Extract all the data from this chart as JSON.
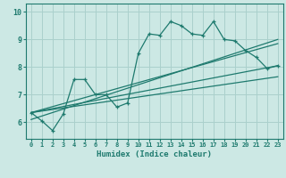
{
  "xlabel": "Humidex (Indice chaleur)",
  "ylabel": "",
  "xlim": [
    -0.5,
    23.5
  ],
  "ylim": [
    5.4,
    10.3
  ],
  "xticks": [
    0,
    1,
    2,
    3,
    4,
    5,
    6,
    7,
    8,
    9,
    10,
    11,
    12,
    13,
    14,
    15,
    16,
    17,
    18,
    19,
    20,
    21,
    22,
    23
  ],
  "yticks": [
    6,
    7,
    8,
    9,
    10
  ],
  "background_color": "#cce8e4",
  "grid_color": "#aad0cc",
  "line_color": "#1e7a6e",
  "line1_x": [
    0,
    1,
    2,
    3,
    4,
    5,
    6,
    7,
    8,
    9,
    10,
    11,
    12,
    13,
    14,
    15,
    16,
    17,
    18,
    19,
    20,
    21,
    22,
    23
  ],
  "line1_y": [
    6.35,
    6.05,
    5.7,
    6.3,
    7.55,
    7.55,
    7.0,
    7.0,
    6.55,
    6.7,
    8.5,
    9.2,
    9.15,
    9.65,
    9.5,
    9.2,
    9.15,
    9.65,
    9.0,
    8.95,
    8.6,
    8.35,
    7.95,
    8.05
  ],
  "line2_x": [
    0,
    23
  ],
  "line2_y": [
    6.35,
    8.05
  ],
  "line3_x": [
    0,
    23
  ],
  "line3_y": [
    6.35,
    7.65
  ],
  "line4_x": [
    0,
    23
  ],
  "line4_y": [
    6.1,
    9.0
  ],
  "line5_x": [
    0,
    23
  ],
  "line5_y": [
    6.35,
    8.85
  ]
}
